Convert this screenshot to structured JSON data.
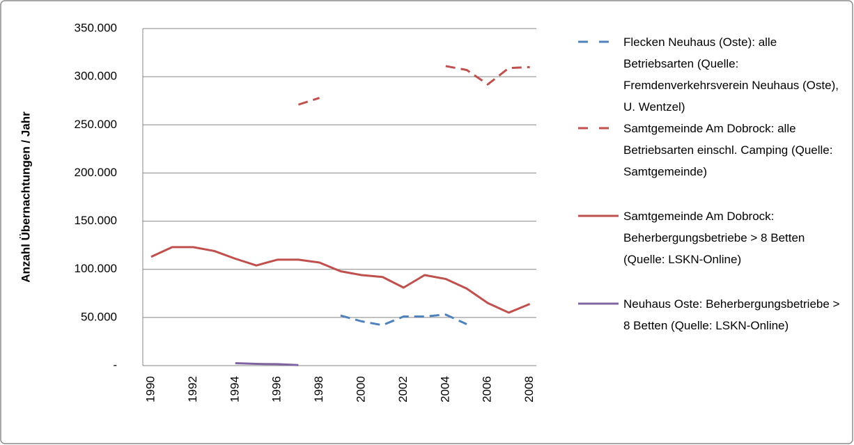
{
  "chart_data": {
    "type": "line",
    "y_label": "Anzahl Übernachtungen / Jahr",
    "categories": [
      "1990",
      null,
      "1992",
      null,
      "1994",
      null,
      "1996",
      null,
      "1998",
      null,
      "2000",
      null,
      "2002",
      null,
      "2004",
      null,
      "2006",
      null,
      "2008"
    ],
    "ylim": [
      0,
      350000
    ],
    "yticks": [
      {
        "value": 0,
        "label": "-"
      },
      {
        "value": 50000,
        "label": "50.000"
      },
      {
        "value": 100000,
        "label": "100.000"
      },
      {
        "value": 150000,
        "label": "150.000"
      },
      {
        "value": 200000,
        "label": "200.000"
      },
      {
        "value": 250000,
        "label": "250.000"
      },
      {
        "value": 300000,
        "label": "300.000"
      },
      {
        "value": 350000,
        "label": "350.000"
      }
    ],
    "grid": true,
    "legend": "right",
    "series": [
      {
        "name": "Flecken Neuhaus (Oste): alle Betriebsarten (Quelle: Fremdenverkehrsverein Neuhaus (Oste), U. Wentzel)",
        "color": "#4f81bd",
        "dashed": true,
        "values": [
          null,
          null,
          null,
          null,
          null,
          null,
          null,
          null,
          null,
          52000,
          46000,
          42000,
          51000,
          51000,
          53000,
          43000,
          null,
          null,
          null
        ]
      },
      {
        "name": "Samtgemeinde Am Dobrock: alle Betriebsarten einschl. Camping (Quelle: Samtgemeinde)",
        "color": "#c0504d",
        "dashed": true,
        "values": [
          null,
          null,
          null,
          null,
          null,
          null,
          null,
          271000,
          278000,
          null,
          null,
          null,
          null,
          null,
          311000,
          307000,
          292000,
          309000,
          310000
        ]
      },
      {
        "name": "Samtgemeinde Am Dobrock: Beherbergungsbetriebe > 8 Betten (Quelle: LSKN-Online)",
        "color": "#c0504d",
        "dashed": false,
        "values": [
          113000,
          123000,
          123000,
          119000,
          111000,
          104000,
          110000,
          110000,
          107000,
          98000,
          94000,
          92000,
          81000,
          94000,
          90000,
          80000,
          65000,
          55000,
          64000
        ]
      },
      {
        "name": "Neuhaus Oste: Beherbergungsbetriebe > 8 Betten (Quelle: LSKN-Online)",
        "color": "#8064a2",
        "dashed": false,
        "values": [
          null,
          null,
          null,
          null,
          2500,
          1800,
          1500,
          500,
          null,
          null,
          null,
          null,
          null,
          null,
          null,
          null,
          null,
          null,
          null
        ]
      }
    ]
  }
}
